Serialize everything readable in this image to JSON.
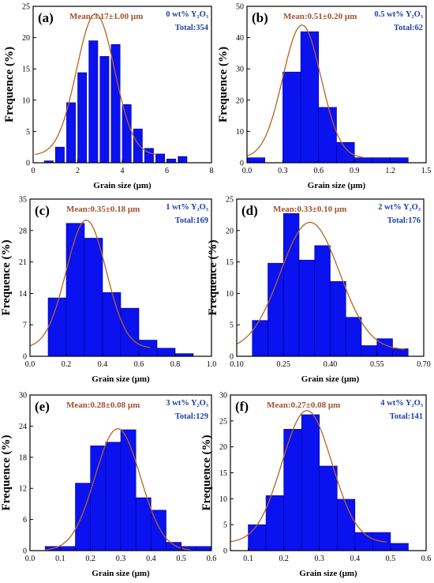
{
  "colors": {
    "bar_fill": "#0a12f0",
    "bar_stroke": "#00008b",
    "curve": "#b5651d",
    "mean_text": "#a0522d",
    "info_text": "#1f3fa8",
    "axis": "#000000"
  },
  "chart_data": [
    {
      "type": "bar",
      "panel_label": "(a)",
      "mean_label": "Mean:3.17±1.00 μm",
      "composition": "0 wt% Y₂O₃",
      "total": "Total:354",
      "xlabel": "Grain size (μm)",
      "ylabel": "Frequence (%)",
      "xlim": [
        0,
        8
      ],
      "ylim": [
        0,
        25
      ],
      "xticks": [
        0,
        2,
        4,
        6,
        8
      ],
      "xtick_labels": [
        "0",
        "2",
        "4",
        "6",
        "8"
      ],
      "yticks": [
        0,
        5,
        10,
        15,
        20,
        25
      ],
      "ytick_labels": [
        "0",
        "5",
        "10",
        "15",
        "20",
        "25"
      ],
      "bins": [
        [
          0.5,
          0.9
        ],
        [
          1.0,
          1.4
        ],
        [
          1.5,
          1.9
        ],
        [
          2.0,
          2.4
        ],
        [
          2.5,
          2.9
        ],
        [
          3.0,
          3.4
        ],
        [
          3.5,
          3.9
        ],
        [
          4.0,
          4.4
        ],
        [
          4.5,
          4.9
        ],
        [
          5.0,
          5.4
        ],
        [
          5.5,
          5.9
        ],
        [
          6.0,
          6.4
        ],
        [
          6.5,
          6.9
        ]
      ],
      "values": [
        0.3,
        2.5,
        9.6,
        14.4,
        19.5,
        17.0,
        18.9,
        9.3,
        5.4,
        2.3,
        1.4,
        0.6,
        1.0
      ],
      "fit": {
        "mean": 2.8,
        "sd": 0.85,
        "peak": 22.6,
        "baseline": 1.2
      }
    },
    {
      "type": "bar",
      "panel_label": "(b)",
      "mean_label": "Mean:0.51±0.20 μm",
      "composition": "0.5 wt% Y₂O₃",
      "total": "Total:62",
      "xlabel": "Grain size (μm)",
      "ylabel": "Frequence (%)",
      "xlim": [
        0,
        1.5
      ],
      "ylim": [
        0,
        50
      ],
      "xticks": [
        0,
        0.3,
        0.6,
        0.9,
        1.2,
        1.5
      ],
      "xtick_labels": [
        "0.0",
        "0.3",
        "0.6",
        "0.9",
        "1.2",
        "1.5"
      ],
      "yticks": [
        0,
        10,
        20,
        30,
        40,
        50
      ],
      "ytick_labels": [
        "0",
        "10",
        "20",
        "30",
        "40",
        "50"
      ],
      "bins": [
        [
          0.0,
          0.15
        ],
        [
          0.15,
          0.3
        ],
        [
          0.3,
          0.45
        ],
        [
          0.45,
          0.6
        ],
        [
          0.6,
          0.75
        ],
        [
          0.75,
          0.9
        ],
        [
          0.9,
          1.05
        ],
        [
          1.05,
          1.2
        ],
        [
          1.2,
          1.35
        ]
      ],
      "values": [
        1.6,
        0.0,
        29.0,
        41.9,
        17.7,
        6.5,
        1.6,
        1.6,
        1.6
      ],
      "fit": {
        "mean": 0.46,
        "sd": 0.16,
        "peak": 42.5,
        "baseline": 1.5
      }
    },
    {
      "type": "bar",
      "panel_label": "(c)",
      "mean_label": "Mean:0.35±0.18 μm",
      "composition": "1 wt% Y₂O₃",
      "total": "Total:169",
      "xlabel": "Grain size (μm)",
      "ylabel": "Frequence (%)",
      "xlim": [
        0,
        1.0
      ],
      "ylim": [
        0,
        35
      ],
      "xticks": [
        0,
        0.2,
        0.4,
        0.6,
        0.8,
        1.0
      ],
      "xtick_labels": [
        "0.0",
        "0.2",
        "0.4",
        "0.6",
        "0.8",
        "1.0"
      ],
      "yticks": [
        0,
        7,
        14,
        21,
        28,
        35
      ],
      "ytick_labels": [
        "0",
        "7",
        "14",
        "21",
        "28",
        "35"
      ],
      "bins": [
        [
          0.1,
          0.2
        ],
        [
          0.2,
          0.3
        ],
        [
          0.3,
          0.4
        ],
        [
          0.4,
          0.5
        ],
        [
          0.5,
          0.6
        ],
        [
          0.6,
          0.7
        ],
        [
          0.7,
          0.8
        ],
        [
          0.8,
          0.9
        ]
      ],
      "values": [
        13.0,
        29.6,
        26.3,
        14.2,
        10.7,
        3.6,
        1.8,
        0.6
      ],
      "fit": {
        "mean": 0.31,
        "sd": 0.11,
        "peak": 28.5,
        "baseline": 1.8
      }
    },
    {
      "type": "bar",
      "panel_label": "(d)",
      "mean_label": "Mean:0.33±0.10 μm",
      "composition": "2 wt% Y₂O₃",
      "total": "Total:176",
      "xlabel": "Grain size (μm)",
      "ylabel": "Frequence (%)",
      "xlim": [
        0.1,
        0.7
      ],
      "ylim": [
        0,
        25
      ],
      "xticks": [
        0.1,
        0.25,
        0.4,
        0.55,
        0.7
      ],
      "xtick_labels": [
        "0.10",
        "0.25",
        "0.40",
        "0.55",
        "0.70"
      ],
      "yticks": [
        0,
        5,
        10,
        15,
        20,
        25
      ],
      "ytick_labels": [
        "0",
        "5",
        "10",
        "15",
        "20",
        "25"
      ],
      "bins": [
        [
          0.15,
          0.2
        ],
        [
          0.2,
          0.25
        ],
        [
          0.25,
          0.3
        ],
        [
          0.3,
          0.35
        ],
        [
          0.35,
          0.4
        ],
        [
          0.4,
          0.45
        ],
        [
          0.45,
          0.5
        ],
        [
          0.5,
          0.55
        ],
        [
          0.55,
          0.6
        ],
        [
          0.6,
          0.65
        ]
      ],
      "values": [
        5.7,
        14.8,
        22.7,
        15.3,
        17.6,
        11.9,
        6.2,
        1.7,
        2.8,
        1.2
      ],
      "fit": {
        "mean": 0.335,
        "sd": 0.095,
        "peak": 20.3,
        "baseline": 1.0
      }
    },
    {
      "type": "bar",
      "panel_label": "(e)",
      "mean_label": "Mean:0.28±0.08 μm",
      "composition": "3 wt% Y₂O₃",
      "total": "Total:129",
      "xlabel": "Grain size (μm)",
      "ylabel": "Frequence (%)",
      "xlim": [
        0,
        0.6
      ],
      "ylim": [
        0,
        30
      ],
      "xticks": [
        0,
        0.1,
        0.2,
        0.3,
        0.4,
        0.5,
        0.6
      ],
      "xtick_labels": [
        "0.0",
        "0.1",
        "0.2",
        "0.3",
        "0.4",
        "0.5",
        "0.6"
      ],
      "yticks": [
        0,
        6,
        12,
        18,
        24,
        30
      ],
      "ytick_labels": [
        "0",
        "6",
        "12",
        "18",
        "24",
        "30"
      ],
      "bins": [
        [
          0.05,
          0.1
        ],
        [
          0.1,
          0.15
        ],
        [
          0.15,
          0.2
        ],
        [
          0.2,
          0.25
        ],
        [
          0.25,
          0.3
        ],
        [
          0.3,
          0.35
        ],
        [
          0.35,
          0.4
        ],
        [
          0.4,
          0.45
        ],
        [
          0.45,
          0.5
        ],
        [
          0.5,
          0.55
        ],
        [
          0.55,
          0.6
        ]
      ],
      "values": [
        0.8,
        0.8,
        13.0,
        20.2,
        20.9,
        23.3,
        10.2,
        7.8,
        1.6,
        0.8,
        0.8
      ],
      "fit": {
        "mean": 0.29,
        "sd": 0.075,
        "peak": 23.5,
        "baseline": 0.0
      }
    },
    {
      "type": "bar",
      "panel_label": "(f)",
      "mean_label": "Mean:0.27±0.08 μm",
      "composition": "4 wt% Y₂O₃",
      "total": "Total:141",
      "xlabel": "Grain size (μm)",
      "ylabel": "Frequence (%)",
      "xlim": [
        0.05,
        0.6
      ],
      "ylim": [
        0,
        30
      ],
      "xticks": [
        0.1,
        0.2,
        0.3,
        0.4,
        0.5,
        0.6
      ],
      "xtick_labels": [
        "0.1",
        "0.2",
        "0.3",
        "0.4",
        "0.5",
        "0.6"
      ],
      "yticks": [
        0,
        5,
        10,
        15,
        20,
        25,
        30
      ],
      "ytick_labels": [
        "0",
        "5",
        "10",
        "15",
        "20",
        "25",
        "30"
      ],
      "bins": [
        [
          0.1,
          0.15
        ],
        [
          0.15,
          0.2
        ],
        [
          0.2,
          0.25
        ],
        [
          0.25,
          0.3
        ],
        [
          0.3,
          0.35
        ],
        [
          0.35,
          0.4
        ],
        [
          0.4,
          0.45
        ],
        [
          0.45,
          0.5
        ],
        [
          0.5,
          0.55
        ]
      ],
      "values": [
        5.0,
        10.6,
        23.4,
        26.2,
        16.3,
        9.9,
        3.5,
        3.5,
        1.4
      ],
      "fit": {
        "mean": 0.265,
        "sd": 0.07,
        "peak": 25.5,
        "baseline": 1.5
      }
    }
  ]
}
